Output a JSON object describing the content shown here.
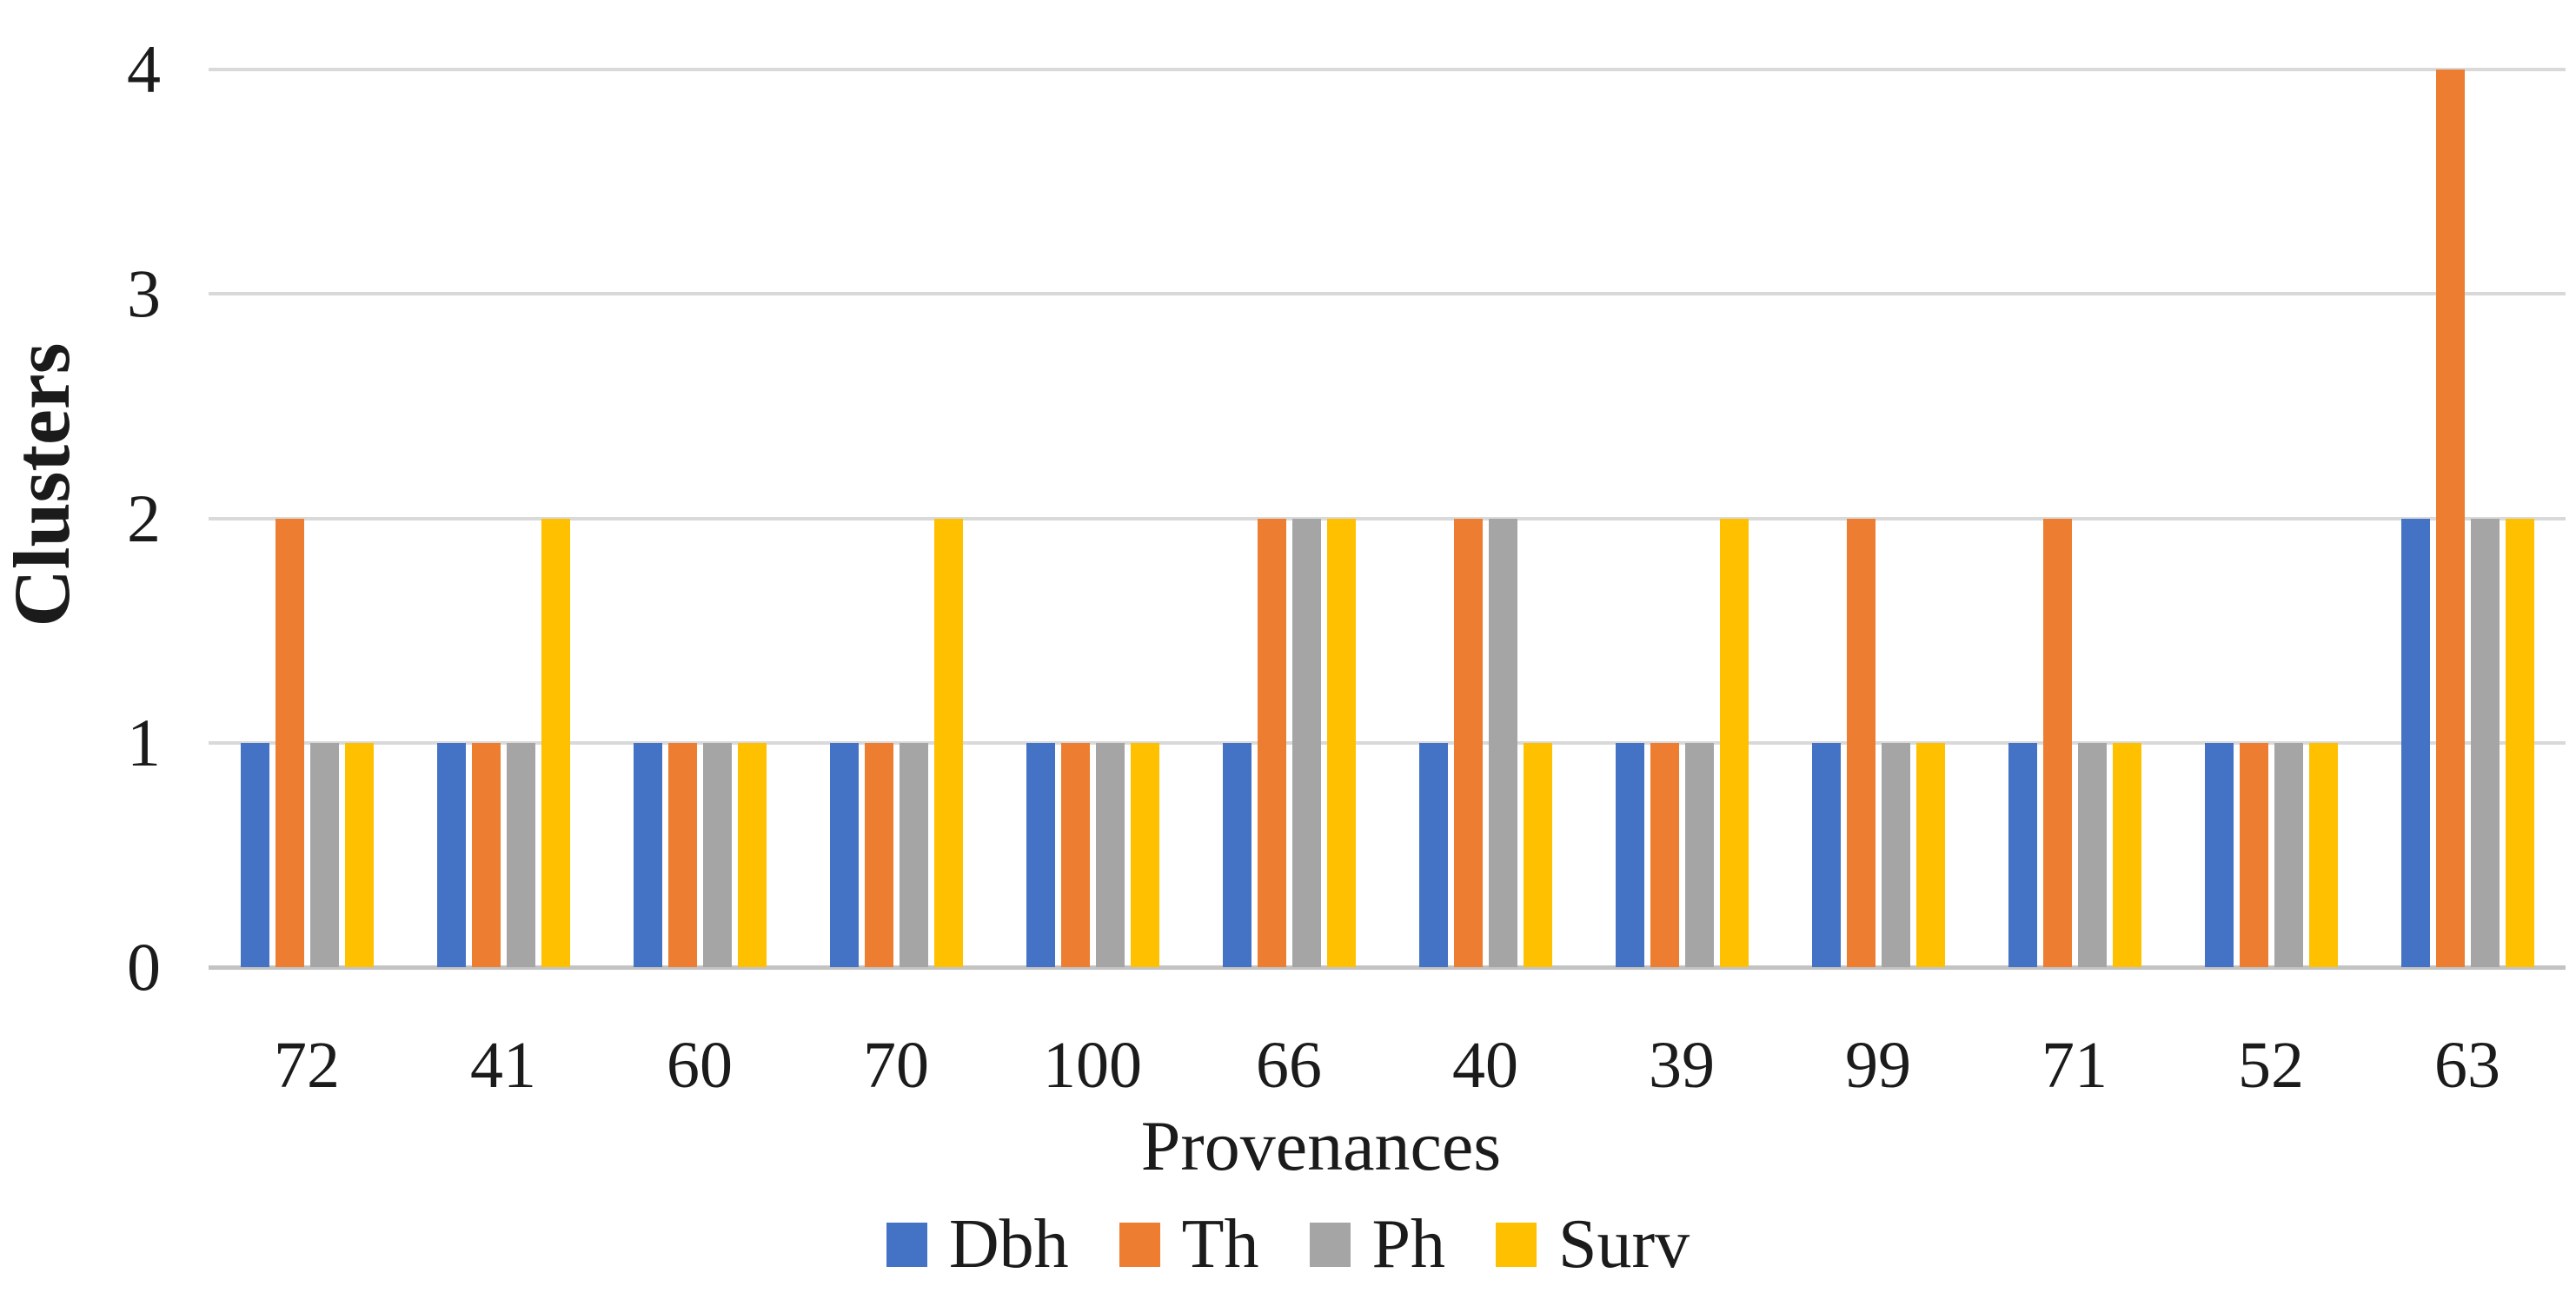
{
  "figure": {
    "background": "#ffffff",
    "text_color": "#1b1b1b",
    "gridline_color": "#d9d9d9",
    "axis_line_color": "#c3c3c3"
  },
  "chart_data": {
    "type": "bar",
    "title": "",
    "xlabel": "Provenances",
    "ylabel": "Clusters",
    "categories": [
      "72",
      "41",
      "60",
      "70",
      "100",
      "66",
      "40",
      "39",
      "99",
      "71",
      "52",
      "63"
    ],
    "series": [
      {
        "name": "Dbh",
        "color": "#4472C4",
        "values": [
          1,
          1,
          1,
          1,
          1,
          1,
          1,
          1,
          1,
          1,
          1,
          2
        ]
      },
      {
        "name": "Th",
        "color": "#ED7D31",
        "values": [
          2,
          1,
          1,
          1,
          1,
          2,
          2,
          1,
          2,
          2,
          1,
          4
        ]
      },
      {
        "name": "Ph",
        "color": "#A5A5A5",
        "values": [
          1,
          1,
          1,
          1,
          1,
          2,
          2,
          1,
          1,
          1,
          1,
          2
        ]
      },
      {
        "name": "Surv",
        "color": "#FFC000",
        "values": [
          1,
          2,
          1,
          2,
          1,
          2,
          1,
          2,
          1,
          1,
          1,
          2
        ]
      }
    ],
    "ylim": [
      0,
      4
    ],
    "yticks": [
      "0",
      "1",
      "2",
      "3",
      "4"
    ],
    "grid": true,
    "legend_position": "bottom"
  }
}
